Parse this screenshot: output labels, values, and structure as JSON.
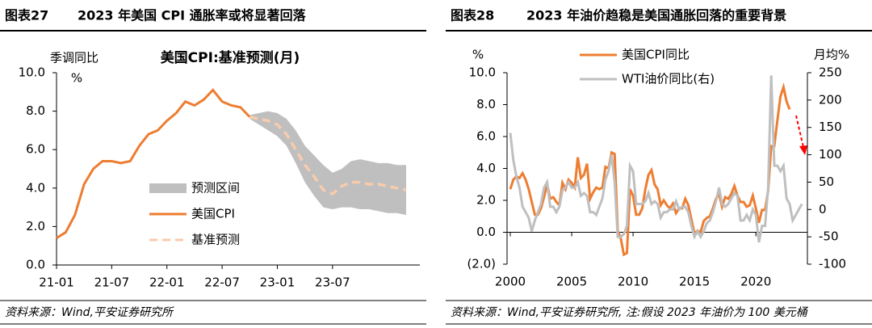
{
  "chart_data": [
    {
      "type": "line",
      "figure": "图表27",
      "title": "2023 年美国 CPI 通胀率或将显著回落",
      "subtitle": "美国CPI:基准预测(月)",
      "ylabel": "季调同比",
      "yunit": "%",
      "source": "资料来源：Wind,平安证券研究所",
      "categories": [
        "21-01",
        null,
        null,
        null,
        null,
        null,
        "21-07",
        null,
        null,
        null,
        null,
        null,
        "22-01",
        null,
        null,
        null,
        null,
        null,
        "22-07",
        null,
        null,
        null,
        null,
        null,
        "23-01",
        null,
        null,
        null,
        null,
        null,
        "23-07",
        null,
        null,
        null,
        null,
        null,
        null,
        null,
        null
      ],
      "ylim": [
        0,
        10
      ],
      "yticks": [
        {
          "value": 0,
          "label": "0.0"
        },
        {
          "value": 2,
          "label": "2.0"
        },
        {
          "value": 4,
          "label": "4.0"
        },
        {
          "value": 6,
          "label": "6.0"
        },
        {
          "value": 8,
          "label": "8.0"
        },
        {
          "value": 10,
          "label": "10.0"
        }
      ],
      "grid": false,
      "series": [
        {
          "name": "预测区间",
          "kind": "band",
          "color": "#BFBFBF",
          "upper": [
            null,
            null,
            null,
            null,
            null,
            null,
            null,
            null,
            null,
            null,
            null,
            null,
            null,
            null,
            null,
            null,
            null,
            null,
            null,
            null,
            null,
            7.8,
            7.9,
            8.0,
            7.9,
            7.6,
            7.0,
            6.2,
            5.7,
            5.2,
            4.8,
            5.0,
            5.4,
            5.5,
            5.4,
            5.3,
            5.3,
            5.2,
            5.2
          ],
          "lower": [
            null,
            null,
            null,
            null,
            null,
            null,
            null,
            null,
            null,
            null,
            null,
            null,
            null,
            null,
            null,
            null,
            null,
            null,
            null,
            null,
            null,
            7.6,
            7.3,
            7.0,
            6.7,
            6.2,
            5.3,
            4.3,
            3.6,
            3.0,
            2.9,
            3.0,
            3.0,
            2.9,
            2.9,
            2.8,
            2.7,
            2.7,
            2.6
          ]
        },
        {
          "name": "美国CPI",
          "color": "#ED7D31",
          "dash": false,
          "values": [
            1.4,
            1.7,
            2.6,
            4.2,
            5.0,
            5.4,
            5.4,
            5.3,
            5.4,
            6.2,
            6.8,
            7.0,
            7.5,
            7.9,
            8.5,
            8.3,
            8.6,
            9.1,
            8.5,
            8.3,
            8.2,
            7.7,
            null,
            null,
            null,
            null,
            null,
            null,
            null,
            null,
            null,
            null,
            null,
            null,
            null,
            null,
            null,
            null,
            null
          ]
        },
        {
          "name": "基准预测",
          "color": "#F8CBAD",
          "dash": true,
          "values": [
            null,
            null,
            null,
            null,
            null,
            null,
            null,
            null,
            null,
            null,
            null,
            null,
            null,
            null,
            null,
            null,
            null,
            null,
            null,
            null,
            null,
            7.7,
            7.6,
            7.5,
            7.3,
            6.8,
            6.0,
            5.2,
            4.6,
            3.9,
            3.7,
            4.1,
            4.3,
            4.3,
            4.2,
            4.2,
            4.1,
            4.0,
            3.9
          ]
        }
      ]
    },
    {
      "type": "line",
      "figure": "图表28",
      "title": "2023 年油价趋稳是美国通胀回落的重要背景",
      "yunit": "%",
      "y2unit": "月均%",
      "source": "资料来源：Wind,平安证券研究所, 注:假设 2023 年油价为 100 美元桶",
      "x": [
        2000,
        2000.25,
        2000.5,
        2000.75,
        2001,
        2001.25,
        2001.5,
        2001.75,
        2002,
        2002.25,
        2002.5,
        2002.75,
        2003,
        2003.25,
        2003.5,
        2003.75,
        2004,
        2004.25,
        2004.5,
        2004.75,
        2005,
        2005.25,
        2005.5,
        2005.75,
        2006,
        2006.25,
        2006.5,
        2006.75,
        2007,
        2007.25,
        2007.5,
        2007.75,
        2008,
        2008.25,
        2008.5,
        2008.75,
        2009,
        2009.25,
        2009.5,
        2009.75,
        2010,
        2010.25,
        2010.5,
        2010.75,
        2011,
        2011.25,
        2011.5,
        2011.75,
        2012,
        2012.25,
        2012.5,
        2012.75,
        2013,
        2013.25,
        2013.5,
        2013.75,
        2014,
        2014.25,
        2014.5,
        2014.75,
        2015,
        2015.25,
        2015.5,
        2015.75,
        2016,
        2016.25,
        2016.5,
        2016.75,
        2017,
        2017.25,
        2017.5,
        2017.75,
        2018,
        2018.25,
        2018.5,
        2018.75,
        2019,
        2019.25,
        2019.5,
        2019.75,
        2020,
        2020.25,
        2020.5,
        2020.75,
        2021,
        2021.25,
        2021.5,
        2021.75,
        2022,
        2022.25,
        2022.5,
        2022.75,
        2023,
        2023.25,
        2023.5,
        2023.75
      ],
      "xlim": [
        2000,
        2024
      ],
      "xticks": [
        2000,
        2005,
        2010,
        2015,
        2020
      ],
      "ylim": [
        -2,
        10
      ],
      "yticks": [
        {
          "value": -2,
          "label": "(2.0)"
        },
        {
          "value": 0,
          "label": "0.0"
        },
        {
          "value": 2,
          "label": "2.0"
        },
        {
          "value": 4,
          "label": "4.0"
        },
        {
          "value": 6,
          "label": "6.0"
        },
        {
          "value": 8,
          "label": "8.0"
        },
        {
          "value": 10,
          "label": "10.0"
        }
      ],
      "negative_tick_color": "#FF0000",
      "y2lim": [
        -100,
        250
      ],
      "y2ticks": [
        -100,
        -50,
        0,
        50,
        100,
        150,
        200,
        250
      ],
      "grid": false,
      "series": [
        {
          "name": "美国CPI同比",
          "color": "#ED7D31",
          "values": [
            2.7,
            3.3,
            3.5,
            3.4,
            3.7,
            3.3,
            2.7,
            1.9,
            1.1,
            1.1,
            1.5,
            2.2,
            3.0,
            2.1,
            2.2,
            1.9,
            1.7,
            3.1,
            2.7,
            3.3,
            3.1,
            2.8,
            4.7,
            3.4,
            3.6,
            4.3,
            2.1,
            2.5,
            2.8,
            2.7,
            2.8,
            4.1,
            4.0,
            5.0,
            4.9,
            0.1,
            -0.4,
            -1.4,
            -1.3,
            2.7,
            2.3,
            1.1,
            1.1,
            1.5,
            2.7,
            3.6,
            3.9,
            3.0,
            2.7,
            1.7,
            2.0,
            1.7,
            1.5,
            1.8,
            1.2,
            1.5,
            1.5,
            2.1,
            1.7,
            0.8,
            -0.1,
            0.1,
            0.0,
            0.7,
            0.9,
            1.0,
            1.5,
            2.1,
            2.4,
            1.6,
            2.2,
            2.1,
            2.4,
            2.9,
            2.3,
            1.9,
            1.9,
            1.6,
            1.7,
            2.3,
            1.5,
            0.6,
            1.4,
            1.4,
            2.6,
            5.4,
            5.4,
            7.0,
            8.5,
            9.1,
            8.2,
            7.7,
            null,
            null,
            null,
            null
          ]
        },
        {
          "name": "WTI油价同比(右)",
          "color": "#BFBFBF",
          "axis": "y2",
          "values": [
            140,
            90,
            60,
            40,
            5,
            -5,
            -15,
            -40,
            -20,
            -5,
            10,
            40,
            50,
            5,
            5,
            -5,
            5,
            35,
            40,
            50,
            40,
            40,
            50,
            25,
            30,
            25,
            -5,
            -5,
            -10,
            5,
            20,
            55,
            70,
            100,
            50,
            -50,
            -50,
            -45,
            -30,
            80,
            70,
            10,
            10,
            10,
            15,
            30,
            10,
            15,
            10,
            -15,
            -5,
            -5,
            0,
            0,
            15,
            0,
            5,
            5,
            -5,
            -30,
            -50,
            -40,
            -50,
            -40,
            -25,
            -20,
            -5,
            15,
            40,
            10,
            5,
            10,
            20,
            30,
            25,
            -20,
            -20,
            -10,
            -20,
            0,
            -10,
            -60,
            -30,
            -30,
            40,
            245,
            80,
            80,
            70,
            80,
            20,
            10,
            -20,
            -10,
            0,
            10
          ]
        }
      ]
    }
  ]
}
